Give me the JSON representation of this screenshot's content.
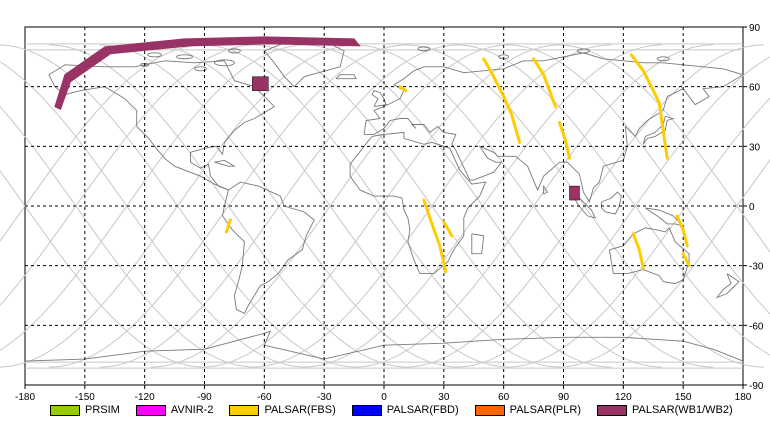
{
  "map": {
    "x_ticks": [
      "-180",
      "-150",
      "-120",
      "-90",
      "-60",
      "-30",
      "0",
      "30",
      "60",
      "90",
      "120",
      "150",
      "180"
    ],
    "y_ticks": [
      "90",
      "60",
      "30",
      "0",
      "-30",
      "-60",
      "-90"
    ],
    "lon_range": [
      -180,
      180
    ],
    "lat_range": [
      -90,
      90
    ],
    "grid": "dashed",
    "colors": {
      "orbit_track": "#c8c8c8",
      "coastline": "#7a7a7a",
      "grid": "#000000"
    }
  },
  "legend": [
    {
      "label": "PRSIM",
      "color": "#99cc00"
    },
    {
      "label": "AVNIR-2",
      "color": "#ff00ff"
    },
    {
      "label": "PALSAR(FBS)",
      "color": "#ffcc00"
    },
    {
      "label": "PALSAR(FBD)",
      "color": "#0000ff"
    },
    {
      "label": "PALSAR(PLR)",
      "color": "#ff6600"
    },
    {
      "label": "PALSAR(WB1/WB2)",
      "color": "#993366"
    }
  ],
  "acquisitions": [
    {
      "sensor": "PALSAR(WB1/WB2)",
      "shape": "swath",
      "path": [
        [
          -165,
          50
        ],
        [
          -160,
          66
        ],
        [
          -140,
          80
        ],
        [
          -100,
          84
        ],
        [
          -60,
          85
        ],
        [
          -15,
          84
        ]
      ],
      "width_lon": 7
    },
    {
      "sensor": "PALSAR(WB1/WB2)",
      "shape": "box",
      "lon": [
        -66,
        -58
      ],
      "lat": [
        58,
        65
      ]
    },
    {
      "sensor": "PALSAR(WB1/WB2)",
      "shape": "box",
      "lon": [
        93,
        98
      ],
      "lat": [
        3,
        10
      ]
    },
    {
      "sensor": "PALSAR(FBS)",
      "shape": "strip",
      "path": [
        [
          50,
          74
        ],
        [
          55,
          65
        ],
        [
          60,
          55
        ],
        [
          64,
          46
        ],
        [
          68,
          32
        ]
      ]
    },
    {
      "sensor": "PALSAR(FBS)",
      "shape": "strip",
      "path": [
        [
          75,
          74
        ],
        [
          80,
          66
        ],
        [
          83,
          58
        ],
        [
          86,
          50
        ]
      ]
    },
    {
      "sensor": "PALSAR(FBS)",
      "shape": "strip",
      "path": [
        [
          88,
          42
        ],
        [
          91,
          33
        ],
        [
          93,
          24
        ]
      ]
    },
    {
      "sensor": "PALSAR(FBS)",
      "shape": "strip",
      "path": [
        [
          124,
          76
        ],
        [
          130,
          68
        ],
        [
          134,
          60
        ],
        [
          138,
          52
        ],
        [
          142,
          24
        ]
      ]
    },
    {
      "sensor": "PALSAR(FBS)",
      "shape": "strip",
      "path": [
        [
          20,
          3
        ],
        [
          24,
          -9
        ],
        [
          28,
          -20
        ],
        [
          31,
          -33
        ]
      ]
    },
    {
      "sensor": "PALSAR(FBS)",
      "shape": "strip",
      "path": [
        [
          -77,
          -7
        ],
        [
          -79,
          -13
        ]
      ]
    },
    {
      "sensor": "PALSAR(FBS)",
      "shape": "strip",
      "path": [
        [
          8,
          60
        ],
        [
          11,
          58
        ]
      ]
    },
    {
      "sensor": "PALSAR(FBS)",
      "shape": "strip",
      "path": [
        [
          30,
          -8
        ],
        [
          34,
          -15
        ]
      ]
    },
    {
      "sensor": "PALSAR(FBS)",
      "shape": "strip",
      "path": [
        [
          125,
          -14
        ],
        [
          128,
          -22
        ],
        [
          130,
          -31
        ]
      ]
    },
    {
      "sensor": "PALSAR(FBS)",
      "shape": "strip",
      "path": [
        [
          147,
          -5
        ],
        [
          150,
          -12
        ],
        [
          152,
          -20
        ]
      ]
    },
    {
      "sensor": "PALSAR(FBS)",
      "shape": "strip",
      "path": [
        [
          150,
          -24
        ],
        [
          153,
          -30
        ]
      ]
    }
  ]
}
